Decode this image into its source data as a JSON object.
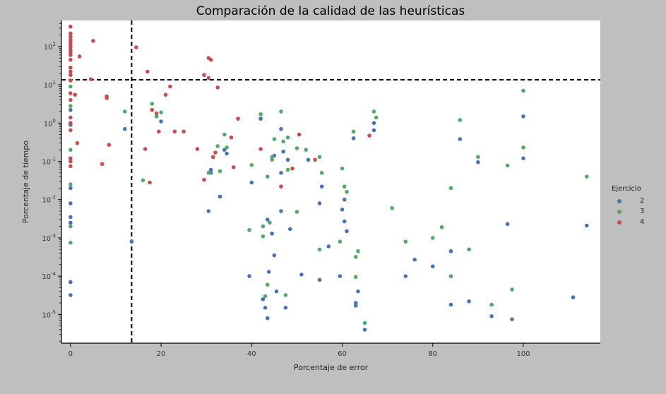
{
  "chart_data": {
    "type": "scatter",
    "title": "Comparación de la calidad de las heurísticas",
    "xlabel": "Porcentaje de error",
    "ylabel": "Porcentaje de tiempo",
    "xlim": [
      -2,
      117
    ],
    "ylim_log10": [
      -5.75,
      2.68
    ],
    "x_ticks": [
      0,
      20,
      40,
      60,
      80,
      100
    ],
    "y_ticks": [
      {
        "exp": -5,
        "base": "10",
        "sup": "-5"
      },
      {
        "exp": -4,
        "base": "10",
        "sup": "-4"
      },
      {
        "exp": -3,
        "base": "10",
        "sup": "-3"
      },
      {
        "exp": -2,
        "base": "10",
        "sup": "-2"
      },
      {
        "exp": -1,
        "base": "10",
        "sup": "-1"
      },
      {
        "exp": 0,
        "base": "10",
        "sup": "0"
      },
      {
        "exp": 1,
        "base": "10",
        "sup": "1"
      },
      {
        "exp": 2,
        "base": "10",
        "sup": "2"
      }
    ],
    "y_scale": "log",
    "grid": false,
    "legend_title": "Ejercicio",
    "legend_position": "right",
    "reference_lines": {
      "vertical_x": 13.5,
      "horizontal_y": 13.5
    },
    "series": [
      {
        "name": "2",
        "color": "#4c72b0",
        "points": [
          [
            0,
            2.2
          ],
          [
            0,
            0.9
          ],
          [
            0,
            0.02
          ],
          [
            0,
            0.008
          ],
          [
            0,
            0.0035
          ],
          [
            0,
            0.0025
          ],
          [
            0,
            7e-05
          ],
          [
            0,
            3.2e-05
          ],
          [
            12,
            0.7
          ],
          [
            13.5,
            0.0008
          ],
          [
            19,
            1.5
          ],
          [
            20,
            1.1
          ],
          [
            30.5,
            0.005
          ],
          [
            31,
            0.06
          ],
          [
            31,
            0.05
          ],
          [
            33,
            0.012
          ],
          [
            34,
            0.2
          ],
          [
            34.5,
            0.16
          ],
          [
            39.5,
            0.0001
          ],
          [
            40,
            0.028
          ],
          [
            42,
            1.3
          ],
          [
            42.5,
            2.5e-05
          ],
          [
            43,
            1.5e-05
          ],
          [
            43.5,
            8e-06
          ],
          [
            43.5,
            0.003
          ],
          [
            43.8,
            0.00013
          ],
          [
            44.5,
            0.0013
          ],
          [
            45,
            0.00035
          ],
          [
            45,
            0.14
          ],
          [
            45.5,
            4e-05
          ],
          [
            46.5,
            0.005
          ],
          [
            46.5,
            0.7
          ],
          [
            46.5,
            0.05
          ],
          [
            47,
            0.18
          ],
          [
            47.5,
            1.5e-05
          ],
          [
            48,
            0.11
          ],
          [
            48.5,
            0.0017
          ],
          [
            51,
            0.00011
          ],
          [
            52.5,
            0.11
          ],
          [
            55,
            0.008
          ],
          [
            55,
            8e-05
          ],
          [
            55.5,
            0.022
          ],
          [
            57,
            0.0006
          ],
          [
            59.5,
            0.0001
          ],
          [
            60,
            0.0055
          ],
          [
            60.5,
            0.01
          ],
          [
            60.5,
            0.0027
          ],
          [
            61,
            0.0015
          ],
          [
            62.5,
            0.4
          ],
          [
            63,
            2e-05
          ],
          [
            63,
            1.7e-05
          ],
          [
            63.5,
            4e-05
          ],
          [
            65,
            4e-06
          ],
          [
            67,
            1
          ],
          [
            67,
            0.65
          ],
          [
            74,
            0.0001
          ],
          [
            76,
            0.00027
          ],
          [
            80,
            0.00018
          ],
          [
            84,
            0.00045
          ],
          [
            84,
            1.8e-05
          ],
          [
            86,
            0.38
          ],
          [
            88,
            2.2e-05
          ],
          [
            90,
            0.095
          ],
          [
            93,
            9e-06
          ],
          [
            96.5,
            0.0023
          ],
          [
            97.5,
            7.5e-06
          ],
          [
            100,
            1.5
          ],
          [
            100,
            0.12
          ],
          [
            111,
            2.8e-05
          ],
          [
            114,
            0.0021
          ]
        ]
      },
      {
        "name": "3",
        "color": "#55a868",
        "points": [
          [
            0,
            9
          ],
          [
            0,
            2.8
          ],
          [
            0,
            0.2
          ],
          [
            0,
            0.025
          ],
          [
            0,
            0.002
          ],
          [
            0,
            0.00075
          ],
          [
            12,
            2
          ],
          [
            16,
            0.032
          ],
          [
            18,
            3.2
          ],
          [
            19,
            1.5
          ],
          [
            20,
            1.9
          ],
          [
            30.5,
            0.05
          ],
          [
            31.5,
            0.13
          ],
          [
            32.5,
            0.25
          ],
          [
            33,
            0.055
          ],
          [
            34,
            0.5
          ],
          [
            34.5,
            0.23
          ],
          [
            39.5,
            0.0016
          ],
          [
            40,
            0.08
          ],
          [
            42,
            1.7
          ],
          [
            42.5,
            0.002
          ],
          [
            42.5,
            0.0011
          ],
          [
            43,
            3e-05
          ],
          [
            43.5,
            0.04
          ],
          [
            43.5,
            6e-05
          ],
          [
            44,
            0.0025
          ],
          [
            44.5,
            0.11
          ],
          [
            44.5,
            0.13
          ],
          [
            45,
            0.38
          ],
          [
            46.5,
            2
          ],
          [
            47,
            0.33
          ],
          [
            47.5,
            3.2e-05
          ],
          [
            48,
            0.06
          ],
          [
            48,
            0.42
          ],
          [
            50,
            0.0048
          ],
          [
            50,
            0.22
          ],
          [
            52,
            0.2
          ],
          [
            55,
            0.0005
          ],
          [
            55,
            0.13
          ],
          [
            55.5,
            0.05
          ],
          [
            59.5,
            0.0008
          ],
          [
            60,
            0.065
          ],
          [
            60.5,
            0.022
          ],
          [
            61,
            0.016
          ],
          [
            62.5,
            0.6
          ],
          [
            63,
            0.00032
          ],
          [
            63,
            9.5e-05
          ],
          [
            63.5,
            0.00045
          ],
          [
            65,
            6e-06
          ],
          [
            67,
            2
          ],
          [
            67.5,
            1.4
          ],
          [
            71,
            0.006
          ],
          [
            74,
            0.0008
          ],
          [
            80,
            0.001
          ],
          [
            82,
            0.0019
          ],
          [
            84,
            0.02
          ],
          [
            84,
            0.0001
          ],
          [
            86,
            1.2
          ],
          [
            88,
            0.0005
          ],
          [
            90,
            0.13
          ],
          [
            93,
            1.8e-05
          ],
          [
            96.5,
            0.078
          ],
          [
            97.5,
            4.5e-05
          ],
          [
            100,
            7
          ],
          [
            100,
            0.23
          ],
          [
            114,
            0.04
          ]
        ]
      },
      {
        "name": "4",
        "color": "#c44e52",
        "points": [
          [
            0,
            330
          ],
          [
            0,
            220
          ],
          [
            0,
            180
          ],
          [
            0,
            150
          ],
          [
            0,
            130
          ],
          [
            0,
            110
          ],
          [
            0,
            95
          ],
          [
            0,
            80
          ],
          [
            0,
            70
          ],
          [
            0,
            60
          ],
          [
            0,
            45
          ],
          [
            0,
            28
          ],
          [
            0,
            22
          ],
          [
            0,
            18
          ],
          [
            0,
            13
          ],
          [
            0,
            6
          ],
          [
            0,
            4
          ],
          [
            0,
            1.4
          ],
          [
            0,
            1
          ],
          [
            0,
            0.65
          ],
          [
            0,
            0.12
          ],
          [
            0,
            0.1
          ],
          [
            0,
            0.075
          ],
          [
            1,
            5.5
          ],
          [
            1.5,
            0.3
          ],
          [
            2,
            55
          ],
          [
            4.5,
            14
          ],
          [
            5,
            140
          ],
          [
            7,
            0.085
          ],
          [
            8,
            5
          ],
          [
            8,
            4.5
          ],
          [
            8.5,
            0.27
          ],
          [
            14.5,
            95
          ],
          [
            16.5,
            0.21
          ],
          [
            17,
            22
          ],
          [
            17.5,
            0.028
          ],
          [
            18,
            2.2
          ],
          [
            19,
            1.8
          ],
          [
            19.5,
            0.6
          ],
          [
            21,
            5.5
          ],
          [
            22,
            9
          ],
          [
            23,
            0.6
          ],
          [
            25,
            0.6
          ],
          [
            28,
            0.21
          ],
          [
            29.5,
            18
          ],
          [
            29.5,
            0.033
          ],
          [
            30.5,
            50
          ],
          [
            30.5,
            15
          ],
          [
            31,
            45
          ],
          [
            31.5,
            0.13
          ],
          [
            32,
            0.17
          ],
          [
            32.5,
            8.5
          ],
          [
            35.5,
            0.42
          ],
          [
            36,
            0.07
          ],
          [
            37,
            1.3
          ],
          [
            42,
            0.21
          ],
          [
            46.5,
            0.022
          ],
          [
            49,
            0.065
          ],
          [
            50.5,
            0.5
          ],
          [
            54,
            0.11
          ],
          [
            66,
            0.47
          ]
        ]
      }
    ]
  }
}
